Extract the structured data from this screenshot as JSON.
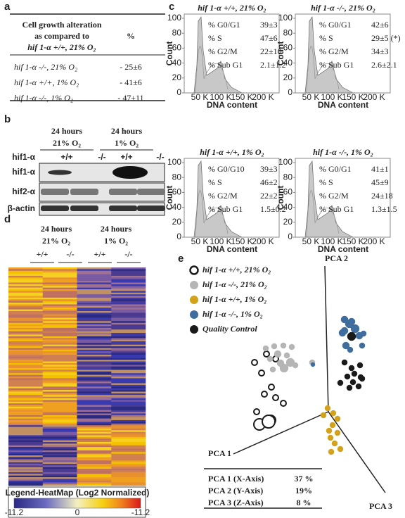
{
  "panel_a": {
    "label": "a",
    "header": [
      "Cell growth alteration",
      "as compared to",
      "hif 1-α +/+, 21% O₂",
      "%"
    ],
    "rows": [
      [
        "hif 1-α -/-, 21% O₂",
        "- 25±6"
      ],
      [
        "hif 1-α +/+, 1% O₂",
        "- 41±6"
      ],
      [
        "hif 1-α -/-, 1% O₂",
        "- 47±11"
      ]
    ]
  },
  "panel_b": {
    "label": "b",
    "conditions": [
      [
        "24 hours",
        "21% O₂"
      ],
      [
        "24 hours",
        "1% O₂"
      ]
    ],
    "genotype_label": "hif1-α",
    "genotypes": [
      "+/+",
      "-/-",
      "+/+",
      "-/-"
    ],
    "blots": [
      "hif1-α",
      "hif2-α",
      "β-actin"
    ]
  },
  "panel_c": {
    "label": "c",
    "y_label": "Count",
    "x_label": "DNA content",
    "yticks": [
      0,
      20,
      40,
      60,
      80,
      100
    ],
    "xticks": [
      "50 K",
      "100 K",
      "150 K",
      "200 K"
    ],
    "plots": [
      {
        "title": "hif 1-α +/+, 21% O₂",
        "rows": [
          [
            "% G0/G1",
            "39±3"
          ],
          [
            "% S",
            "47±6"
          ],
          [
            "% G2/M",
            "22±10"
          ],
          [
            "% Sub G1",
            "2.1±1.2"
          ]
        ]
      },
      {
        "title": "hif 1-α -/-, 21% O₂",
        "rows": [
          [
            "% G0/G1",
            "42±6"
          ],
          [
            "% S",
            "29±5 (*)"
          ],
          [
            "% G2/M",
            "34±3"
          ],
          [
            "% Sub G1",
            "2.6±2.1"
          ]
        ]
      },
      {
        "title": "hif 1-α +/+, 1% O₂",
        "rows": [
          [
            "% G0/G10",
            "39±3"
          ],
          [
            "% S",
            "46±2"
          ],
          [
            "% G2/M",
            "22±2"
          ],
          [
            "% Sub G1",
            "1.5±0.2"
          ]
        ]
      },
      {
        "title": "hif 1-α -/-, 1% O₂",
        "rows": [
          [
            "% G0/G1",
            "41±1"
          ],
          [
            "% S",
            "45±9"
          ],
          [
            "% G2/M",
            "24±18"
          ],
          [
            "% Sub G1",
            "1.3±1.5"
          ]
        ]
      }
    ]
  },
  "panel_d": {
    "label": "d",
    "conditions": [
      [
        "24 hours",
        "21% O₂"
      ],
      [
        "24 hours",
        "1% O₂"
      ]
    ],
    "genotypes": [
      "+/+",
      "-/-",
      "+/+",
      "-/-"
    ],
    "legend_title": "Legend-HeatMap (Log2 Normalized)",
    "legend_ticks": [
      -11.2,
      0,
      -11.2
    ]
  },
  "panel_e": {
    "label": "e",
    "legend": [
      {
        "name": "hif 1-α +/+, 21% O₂",
        "color": "#1a1a1a",
        "open": true
      },
      {
        "name": "hif 1-α -/-, 21% O₂",
        "color": "#b5b5b5",
        "open": false
      },
      {
        "name": "hif 1-α +/+, 1% O₂",
        "color": "#d4a21a",
        "open": false
      },
      {
        "name": "hif 1-α -/-, 1% O₂",
        "color": "#3f6d9e",
        "open": false
      },
      {
        "name": "Quality Control",
        "color": "#1a1a1a",
        "open": false
      }
    ],
    "axes": [
      "PCA 1",
      "PCA 2",
      "PCA 3"
    ],
    "table": [
      [
        "PCA 1 (X-Axis)",
        "37 %"
      ],
      [
        "PCA 2 (Y-Axis)",
        "19%"
      ],
      [
        "PCA 3 (Z-Axis)",
        "8 %"
      ]
    ]
  }
}
